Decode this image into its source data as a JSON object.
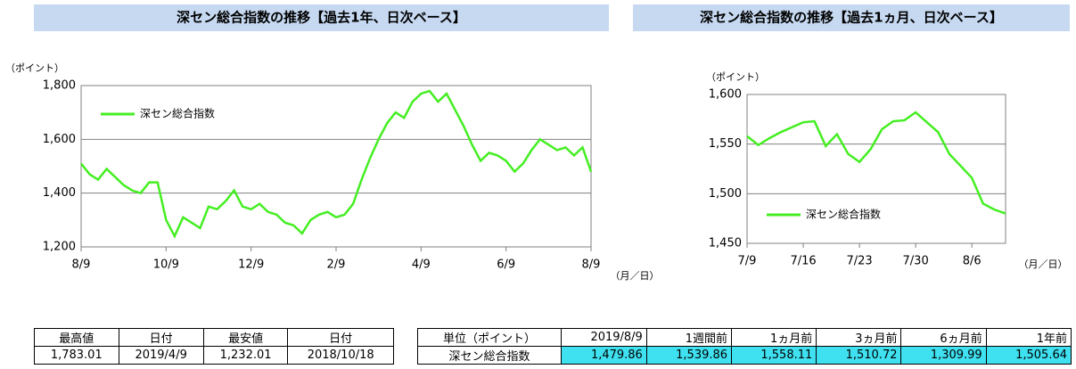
{
  "chart_data": [
    {
      "type": "line",
      "title": "深セン総合指数の推移【過去1年、日次ベース】",
      "y_label": "（ポイント）",
      "x_label": "（月／日）",
      "categories": [
        "8/9",
        null,
        null,
        null,
        null,
        null,
        null,
        null,
        null,
        null,
        "10/9",
        null,
        null,
        null,
        null,
        null,
        null,
        null,
        null,
        null,
        "12/9",
        null,
        null,
        null,
        null,
        null,
        null,
        null,
        null,
        null,
        "2/9",
        null,
        null,
        null,
        null,
        null,
        null,
        null,
        null,
        null,
        "4/9",
        null,
        null,
        null,
        null,
        null,
        null,
        null,
        null,
        null,
        "6/9",
        null,
        null,
        null,
        null,
        null,
        null,
        null,
        null,
        null,
        "8/9"
      ],
      "series": [
        {
          "name": "深セン総合指数",
          "color": "#44ee22",
          "values": [
            1510,
            1470,
            1450,
            1490,
            1460,
            1430,
            1410,
            1400,
            1440,
            1440,
            1300,
            1240,
            1310,
            1290,
            1270,
            1350,
            1340,
            1370,
            1410,
            1350,
            1340,
            1360,
            1330,
            1320,
            1290,
            1280,
            1250,
            1300,
            1320,
            1330,
            1310,
            1320,
            1360,
            1450,
            1530,
            1600,
            1660,
            1700,
            1680,
            1740,
            1770,
            1780,
            1740,
            1770,
            1710,
            1650,
            1580,
            1520,
            1550,
            1540,
            1520,
            1480,
            1510,
            1560,
            1600,
            1580,
            1560,
            1570,
            1540,
            1570,
            1480
          ]
        }
      ],
      "ylim": [
        1200,
        1800
      ],
      "yticks": [
        {
          "value": 1200,
          "label": "1,200"
        },
        {
          "value": 1400,
          "label": "1,400"
        },
        {
          "value": 1600,
          "label": "1,600"
        },
        {
          "value": 1800,
          "label": "1,800"
        }
      ],
      "grid": true,
      "legend": "top-left"
    },
    {
      "type": "line",
      "title": "深セン総合指数の推移【過去1ヵ月、日次ベース】",
      "y_label": "（ポイント）",
      "x_label": "（月／日）",
      "categories": [
        "7/9",
        null,
        null,
        null,
        null,
        "7/16",
        null,
        null,
        null,
        null,
        "7/23",
        null,
        null,
        null,
        null,
        "7/30",
        null,
        null,
        null,
        null,
        "8/6",
        null,
        null,
        null
      ],
      "series": [
        {
          "name": "深セン総合指数",
          "color": "#44ee22",
          "values": [
            1558,
            1549,
            1556,
            1562,
            1567,
            1572,
            1573,
            1548,
            1560,
            1540,
            1532,
            1545,
            1565,
            1573,
            1574,
            1582,
            1572,
            1562,
            1540,
            1528,
            1516,
            1490,
            1484,
            1480
          ]
        }
      ],
      "ylim": [
        1450,
        1600
      ],
      "yticks": [
        {
          "value": 1450,
          "label": "1,450"
        },
        {
          "value": 1500,
          "label": "1,500"
        },
        {
          "value": 1550,
          "label": "1,550"
        },
        {
          "value": 1600,
          "label": "1,600"
        }
      ],
      "grid": true,
      "legend": "bottom-left"
    }
  ],
  "tables": [
    {
      "header": [
        "最高値",
        "日付",
        "最安値",
        "日付"
      ],
      "rows": [
        [
          "1,783.01",
          "2019/4/9",
          "1,232.01",
          "2018/10/18"
        ]
      ]
    },
    {
      "header": [
        "単位（ポイント）",
        "2019/8/9",
        "1週間前",
        "1ヵ月前",
        "3ヵ月前",
        "6ヵ月前",
        "1年前"
      ],
      "rows": [
        [
          "深セン総合指数",
          "1,479.86",
          "1,539.86",
          "1,558.11",
          "1,510.72",
          "1,309.99",
          "1,505.64"
        ]
      ]
    }
  ]
}
